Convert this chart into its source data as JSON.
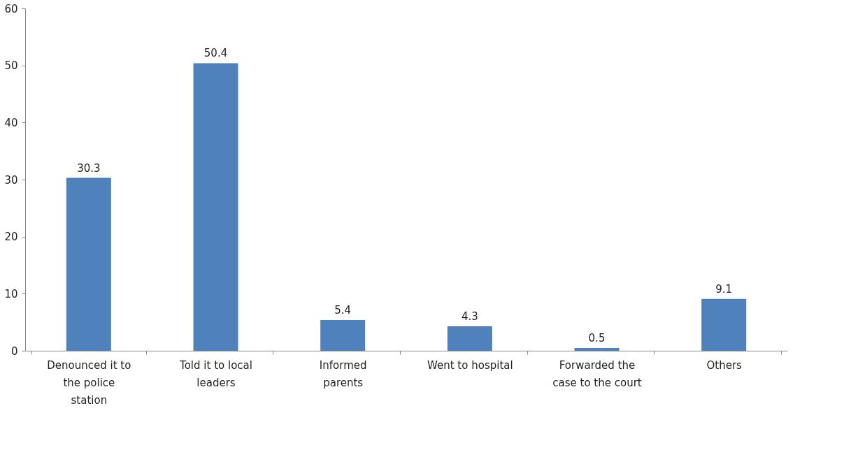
{
  "chart_data": {
    "type": "bar",
    "categories": [
      "Denounced it to the police station",
      "Told it to local leaders",
      "Informed parents",
      "Went to hospital",
      "Forwarded the case to the court",
      "Others"
    ],
    "values": [
      30.3,
      50.4,
      5.4,
      4.3,
      0.5,
      9.1
    ],
    "color": "#4f81bd",
    "ylim": [
      0,
      60
    ],
    "yticks": [
      0,
      10,
      20,
      30,
      40,
      50,
      60
    ],
    "grid": false,
    "data_labels": true
  }
}
